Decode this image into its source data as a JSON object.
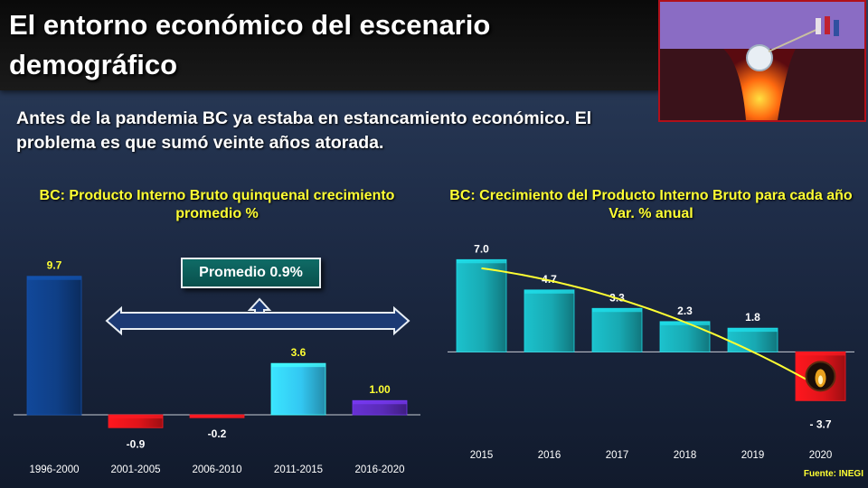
{
  "title": "El entorno económico del escenario demográfico",
  "subtitle": "Antes de la pandemia BC ya estaba en estancamiento económico. El problema es que sumó veinte años atorada.",
  "source": "Fuente: INEGI",
  "colors": {
    "accent": "#ffff33",
    "positive_dark": "#0f3f86",
    "negative": "#e0141a",
    "light_blue": "#33c7f2",
    "teal": "#18a9b2",
    "purple": "#5a2bb8",
    "trend": "#ffff33"
  },
  "chart_data": [
    {
      "type": "bar",
      "title": "BC: Producto Interno Bruto quinquenal crecimiento promedio %",
      "categories": [
        "1996-2000",
        "2001-2005",
        "2006-2010",
        "2011-2015",
        "2016-2020"
      ],
      "values": [
        9.7,
        -0.9,
        -0.2,
        3.6,
        1.0
      ],
      "value_labels": [
        "9.7",
        "-0.9",
        "-0.2",
        "3.6",
        "1.00"
      ],
      "bar_colors": [
        "#0f3f86",
        "#e0141a",
        "#e0141a",
        "#33c7f2",
        "#5a2bb8"
      ],
      "ylim": [
        -1.2,
        10
      ],
      "annotation": "Promedio 0.9%",
      "grid": false
    },
    {
      "type": "bar",
      "title": "BC: Crecimiento del Producto Interno Bruto para cada año  Var. % anual",
      "categories": [
        "2015",
        "2016",
        "2017",
        "2018",
        "2019",
        "2020"
      ],
      "values": [
        7.0,
        4.7,
        3.3,
        2.3,
        1.8,
        -3.7
      ],
      "value_labels": [
        "7.0",
        "4.7",
        "3.3",
        "2.3",
        "1.8",
        "-   3.7"
      ],
      "bar_colors": [
        "#18a9b2",
        "#18a9b2",
        "#18a9b2",
        "#18a9b2",
        "#18a9b2",
        "#e0141a"
      ],
      "ylim": [
        -4.5,
        7.5
      ],
      "trendline": true,
      "grid": false
    }
  ]
}
